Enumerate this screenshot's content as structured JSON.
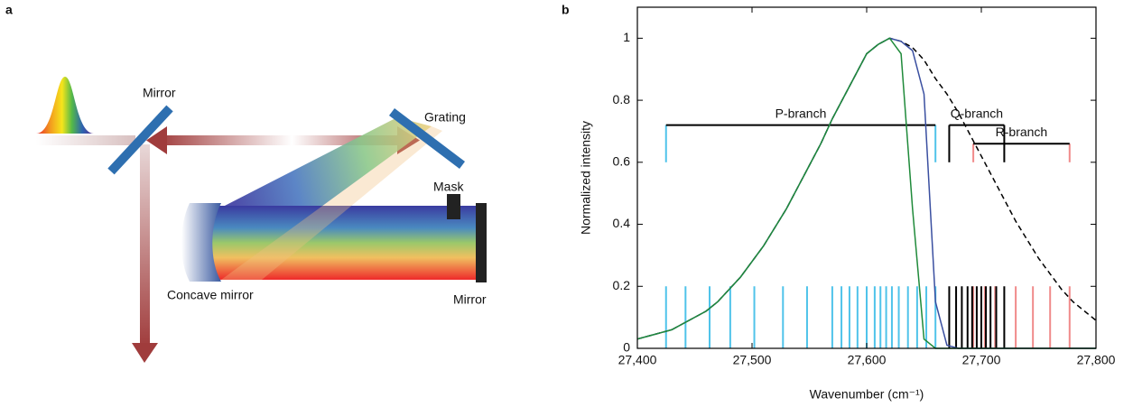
{
  "diagram": {
    "panel_label": "a",
    "labels": {
      "mirror_top": "Mirror",
      "grating": "Grating",
      "mask": "Mask",
      "concave_mirror": "Concave mirror",
      "mirror_end": "Mirror"
    }
  },
  "chart_data": {
    "type": "line",
    "panel_label": "b",
    "x_label": "Wavenumber (cm⁻¹)",
    "y_label": "Normalized intensity",
    "xlim": [
      27400,
      27800
    ],
    "ylim": [
      0,
      1.1
    ],
    "xticks": [
      {
        "value": 27400,
        "label": "27,400"
      },
      {
        "value": 27500,
        "label": "27,500"
      },
      {
        "value": 27600,
        "label": "27,600"
      },
      {
        "value": 27700,
        "label": "27,700"
      },
      {
        "value": 27800,
        "label": "27,800"
      }
    ],
    "yticks": [
      0,
      0.2,
      0.4,
      0.6,
      0.8,
      1
    ],
    "x": [
      27400,
      27410,
      27420,
      27430,
      27440,
      27450,
      27460,
      27470,
      27480,
      27490,
      27500,
      27510,
      27520,
      27530,
      27540,
      27550,
      27560,
      27570,
      27580,
      27590,
      27600,
      27610,
      27620,
      27630,
      27640,
      27650,
      27660,
      27670,
      27680,
      27690,
      27700,
      27710,
      27720,
      27730,
      27740,
      27750,
      27760,
      27770,
      27780,
      27790,
      27800
    ],
    "series": [
      {
        "color": "#000000",
        "dash": true,
        "values": [
          0.03,
          0.04,
          0.05,
          0.06,
          0.08,
          0.1,
          0.12,
          0.15,
          0.19,
          0.23,
          0.28,
          0.33,
          0.39,
          0.45,
          0.52,
          0.59,
          0.66,
          0.74,
          0.81,
          0.88,
          0.95,
          0.98,
          1,
          0.99,
          0.97,
          0.93,
          0.87,
          0.82,
          0.76,
          0.69,
          0.62,
          0.55,
          0.48,
          0.41,
          0.35,
          0.29,
          0.24,
          0.19,
          0.15,
          0.12,
          0.09
        ]
      },
      {
        "color": "#3a4fa0",
        "dash": false,
        "values": [
          0.03,
          0.04,
          0.05,
          0.06,
          0.08,
          0.1,
          0.12,
          0.15,
          0.19,
          0.23,
          0.28,
          0.33,
          0.39,
          0.45,
          0.52,
          0.59,
          0.66,
          0.74,
          0.81,
          0.88,
          0.95,
          0.98,
          1,
          0.99,
          0.96,
          0.82,
          0.15,
          0.01,
          0,
          0,
          0,
          0,
          0,
          0,
          0,
          0,
          0,
          0,
          0,
          0,
          0
        ]
      },
      {
        "color": "#1f8a3a",
        "dash": false,
        "values": [
          0.03,
          0.04,
          0.05,
          0.06,
          0.08,
          0.1,
          0.12,
          0.15,
          0.19,
          0.23,
          0.28,
          0.33,
          0.39,
          0.45,
          0.52,
          0.59,
          0.66,
          0.74,
          0.81,
          0.88,
          0.95,
          0.98,
          1,
          0.95,
          0.45,
          0.03,
          0,
          0,
          0,
          0,
          0,
          0,
          0,
          0,
          0,
          0,
          0,
          0,
          0,
          0,
          0
        ]
      }
    ],
    "stick_height": 0.2,
    "sticks": [
      {
        "color": "#4fc3ea",
        "positions": [
          27425,
          27442,
          27463,
          27481,
          27502,
          27527,
          27548,
          27570,
          27578,
          27585,
          27592,
          27600,
          27607,
          27612,
          27617,
          27622,
          27628,
          27636,
          27644,
          27652,
          27660
        ]
      },
      {
        "color": "#f08a8a",
        "positions": [
          27693,
          27703,
          27712,
          27730,
          27745,
          27760,
          27777
        ]
      },
      {
        "color": "#000000",
        "positions": [
          27672,
          27678,
          27683,
          27688,
          27692,
          27696,
          27700,
          27704,
          27708,
          27713,
          27720
        ]
      }
    ],
    "branch_tick_bottom": 0.6,
    "branches": [
      {
        "label": "P-branch",
        "color": "#4fc3ea",
        "start": 27425,
        "end": 27660,
        "y": 0.72
      },
      {
        "label": "Q-branch",
        "color": "#000000",
        "start": 27672,
        "end": 27720,
        "y": 0.72
      },
      {
        "label": "R-branch",
        "color": "#f08a8a",
        "start": 27693,
        "end": 27777,
        "y": 0.66
      }
    ]
  }
}
